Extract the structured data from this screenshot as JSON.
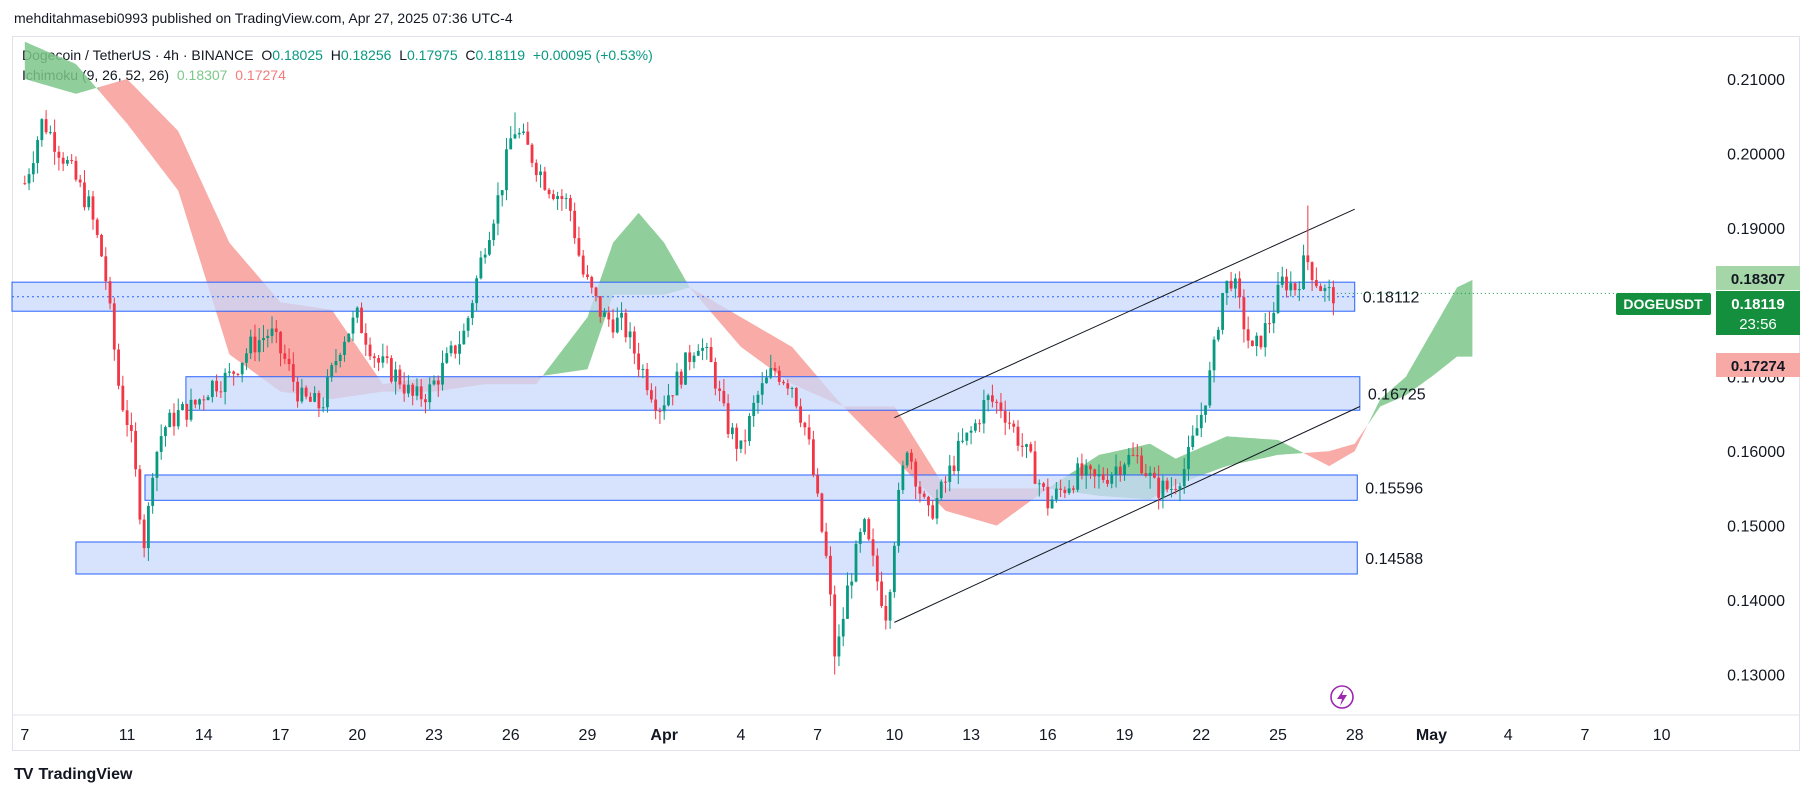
{
  "header": {
    "published_line": "mehditahmasebi0993 published on TradingView.com, Apr 27, 2025 07:36 UTC-4"
  },
  "legend": {
    "symbol_line": "Dogecoin / TetherUS · 4h · BINANCE",
    "ohlc": {
      "o_label": "O",
      "o": "0.18025",
      "h_label": "H",
      "h": "0.18256",
      "l_label": "L",
      "l": "0.17975",
      "c_label": "C",
      "c": "0.18119",
      "change": "+0.00095 (+0.53%)"
    },
    "indicator_name": "Ichimoku (9, 26, 52, 26)",
    "indicator_v1": "0.18307",
    "indicator_v2": "0.17274"
  },
  "price_tags": {
    "symbol_badge": "DOGEUSDT",
    "current_price": "0.18119",
    "countdown": "23:56",
    "span_a": "0.18307",
    "span_b": "0.17274"
  },
  "footer": {
    "brand": "TradingView",
    "logo": "TV"
  },
  "colors": {
    "up": "#089981",
    "down": "#f23645",
    "zone_fill": "#c9d9fb",
    "zone_stroke": "#2962ff",
    "cloud_green": "#7cc78a",
    "cloud_red": "#f58f8a",
    "current": "#138f3d"
  },
  "chart_data": {
    "type": "candlestick",
    "title": "Dogecoin / TetherUS · 4h · BINANCE",
    "ylim": [
      0.1255,
      0.2155
    ],
    "y_ticks": [
      "0.21000",
      "0.20000",
      "0.19000",
      "0.18000",
      "0.17000",
      "0.16000",
      "0.15000",
      "0.14000",
      "0.13000"
    ],
    "y_tick_values": [
      0.21,
      0.2,
      0.19,
      0.18,
      0.17,
      0.16,
      0.15,
      0.14,
      0.13
    ],
    "x_ticks": [
      "7",
      "11",
      "14",
      "17",
      "20",
      "23",
      "26",
      "29",
      "Apr",
      "4",
      "7",
      "10",
      "13",
      "16",
      "19",
      "22",
      "25",
      "28",
      "May",
      "4",
      "7",
      "10"
    ],
    "x_tick_days": [
      -1,
      3,
      6,
      9,
      12,
      15,
      18,
      21,
      24,
      27,
      30,
      33,
      36,
      39,
      42,
      45,
      48,
      51,
      54,
      57,
      60,
      63
    ],
    "xlim_days": [
      -1.5,
      64.5
    ],
    "last_candle_day": 50.3,
    "close_path": [
      [
        -1,
        0.196
      ],
      [
        -0.3,
        0.2045
      ],
      [
        0.6,
        0.199
      ],
      [
        1.5,
        0.193
      ],
      [
        2.1,
        0.185
      ],
      [
        2.7,
        0.168
      ],
      [
        3.1,
        0.163
      ],
      [
        3.4,
        0.155
      ],
      [
        3.7,
        0.147
      ],
      [
        4.0,
        0.158
      ],
      [
        4.4,
        0.163
      ],
      [
        5.0,
        0.165
      ],
      [
        5.6,
        0.166
      ],
      [
        6.3,
        0.169
      ],
      [
        7.0,
        0.17
      ],
      [
        7.8,
        0.174
      ],
      [
        8.6,
        0.176
      ],
      [
        9.2,
        0.172
      ],
      [
        9.8,
        0.167
      ],
      [
        10.6,
        0.166
      ],
      [
        11.4,
        0.175
      ],
      [
        12.0,
        0.178
      ],
      [
        12.8,
        0.172
      ],
      [
        13.6,
        0.17
      ],
      [
        14.2,
        0.167
      ],
      [
        14.8,
        0.168
      ],
      [
        15.5,
        0.172
      ],
      [
        16.2,
        0.176
      ],
      [
        17.0,
        0.188
      ],
      [
        17.6,
        0.195
      ],
      [
        18.1,
        0.2035
      ],
      [
        18.6,
        0.201
      ],
      [
        19.4,
        0.196
      ],
      [
        20.3,
        0.193
      ],
      [
        20.8,
        0.184
      ],
      [
        21.6,
        0.178
      ],
      [
        22.4,
        0.177
      ],
      [
        23.0,
        0.172
      ],
      [
        23.8,
        0.166
      ],
      [
        24.6,
        0.17
      ],
      [
        25.3,
        0.175
      ],
      [
        25.9,
        0.171
      ],
      [
        26.4,
        0.164
      ],
      [
        27.0,
        0.16
      ],
      [
        27.6,
        0.167
      ],
      [
        28.3,
        0.171
      ],
      [
        29.0,
        0.169
      ],
      [
        29.6,
        0.162
      ],
      [
        30.0,
        0.153
      ],
      [
        30.4,
        0.144
      ],
      [
        30.7,
        0.1315
      ],
      [
        31.2,
        0.142
      ],
      [
        31.8,
        0.15
      ],
      [
        32.3,
        0.143
      ],
      [
        32.7,
        0.138
      ],
      [
        33.1,
        0.152
      ],
      [
        33.5,
        0.161
      ],
      [
        33.9,
        0.156
      ],
      [
        34.3,
        0.151
      ],
      [
        34.9,
        0.155
      ],
      [
        35.5,
        0.16
      ],
      [
        36.1,
        0.163
      ],
      [
        36.6,
        0.167
      ],
      [
        37.2,
        0.166
      ],
      [
        37.8,
        0.162
      ],
      [
        38.4,
        0.158
      ],
      [
        39.0,
        0.153
      ],
      [
        39.6,
        0.155
      ],
      [
        40.2,
        0.157
      ],
      [
        40.8,
        0.156
      ],
      [
        41.4,
        0.157
      ],
      [
        42.0,
        0.159
      ],
      [
        42.6,
        0.159
      ],
      [
        43.2,
        0.155
      ],
      [
        43.8,
        0.155
      ],
      [
        44.4,
        0.158
      ],
      [
        45.0,
        0.165
      ],
      [
        45.4,
        0.171
      ],
      [
        45.8,
        0.181
      ],
      [
        46.2,
        0.1835
      ],
      [
        46.6,
        0.178
      ],
      [
        47.0,
        0.173
      ],
      [
        47.6,
        0.177
      ],
      [
        48.2,
        0.183
      ],
      [
        48.7,
        0.182
      ],
      [
        49.1,
        0.186
      ],
      [
        49.5,
        0.183
      ],
      [
        49.9,
        0.181
      ],
      [
        50.3,
        0.18119
      ]
    ],
    "wick_extremes": {
      "high": 0.2055,
      "high_day": 18.1,
      "low": 0.13,
      "low_day": 30.7,
      "recent_high": 0.193,
      "recent_high_day": 49.1
    },
    "ichimoku": {
      "params": "9, 26, 52, 26",
      "span_a_last": 0.18307,
      "span_b_last": 0.17274,
      "span_a": [
        [
          -1,
          0.215
        ],
        [
          1,
          0.212
        ],
        [
          3,
          0.204
        ],
        [
          5,
          0.195
        ],
        [
          7,
          0.173
        ],
        [
          9,
          0.168
        ],
        [
          11,
          0.167
        ],
        [
          13,
          0.168
        ],
        [
          15,
          0.168
        ],
        [
          17,
          0.169
        ],
        [
          19,
          0.169
        ],
        [
          21,
          0.178
        ],
        [
          22,
          0.188
        ],
        [
          23,
          0.192
        ],
        [
          24,
          0.188
        ],
        [
          25,
          0.182
        ],
        [
          27,
          0.174
        ],
        [
          29,
          0.169
        ],
        [
          31,
          0.166
        ],
        [
          33,
          0.159
        ],
        [
          35,
          0.152
        ],
        [
          37,
          0.15
        ],
        [
          39,
          0.155
        ],
        [
          41,
          0.1595
        ],
        [
          43,
          0.161
        ],
        [
          44,
          0.159
        ],
        [
          46,
          0.162
        ],
        [
          48,
          0.1615
        ],
        [
          50,
          0.158
        ],
        [
          51,
          0.16
        ],
        [
          52,
          0.167
        ],
        [
          53,
          0.17
        ],
        [
          54,
          0.176
        ],
        [
          55,
          0.182
        ],
        [
          55.6,
          0.183
        ]
      ],
      "span_b": [
        [
          -1,
          0.21
        ],
        [
          1,
          0.208
        ],
        [
          3,
          0.21
        ],
        [
          5,
          0.203
        ],
        [
          7,
          0.188
        ],
        [
          9,
          0.18
        ],
        [
          11,
          0.179
        ],
        [
          13,
          0.169
        ],
        [
          15,
          0.17
        ],
        [
          17,
          0.17
        ],
        [
          19,
          0.17
        ],
        [
          21,
          0.171
        ],
        [
          22,
          0.181
        ],
        [
          23,
          0.181
        ],
        [
          24,
          0.181
        ],
        [
          25,
          0.182
        ],
        [
          27,
          0.178
        ],
        [
          29,
          0.174
        ],
        [
          31,
          0.166
        ],
        [
          33,
          0.166
        ],
        [
          35,
          0.155
        ],
        [
          37,
          0.155
        ],
        [
          39,
          0.155
        ],
        [
          41,
          0.154
        ],
        [
          43,
          0.1535
        ],
        [
          44,
          0.1555
        ],
        [
          46,
          0.158
        ],
        [
          48,
          0.1595
        ],
        [
          50,
          0.16
        ],
        [
          51,
          0.161
        ],
        [
          52,
          0.166
        ],
        [
          53,
          0.1675
        ],
        [
          54,
          0.17
        ],
        [
          55,
          0.1727
        ],
        [
          55.6,
          0.1727
        ]
      ]
    },
    "zones": [
      {
        "label": "0.18112",
        "top": 0.1827,
        "bottom": 0.1788,
        "x0_day": -1.5,
        "x1_day": 51.0
      },
      {
        "label": "0.16725",
        "top": 0.17,
        "bottom": 0.1655,
        "x0_day": 5.3,
        "x1_day": 51.2
      },
      {
        "label": "0.15596",
        "top": 0.1568,
        "bottom": 0.1534,
        "x0_day": 3.7,
        "x1_day": 51.1
      },
      {
        "label": "0.14588",
        "top": 0.1478,
        "bottom": 0.1435,
        "x0_day": 1.0,
        "x1_day": 51.1
      }
    ],
    "channel": {
      "upper": [
        [
          33.0,
          0.1645
        ],
        [
          51.0,
          0.1925
        ]
      ],
      "lower": [
        [
          33.0,
          0.137
        ],
        [
          51.2,
          0.166
        ]
      ]
    },
    "current_price": 0.18119,
    "grid": false,
    "legend_position": "top-left"
  }
}
